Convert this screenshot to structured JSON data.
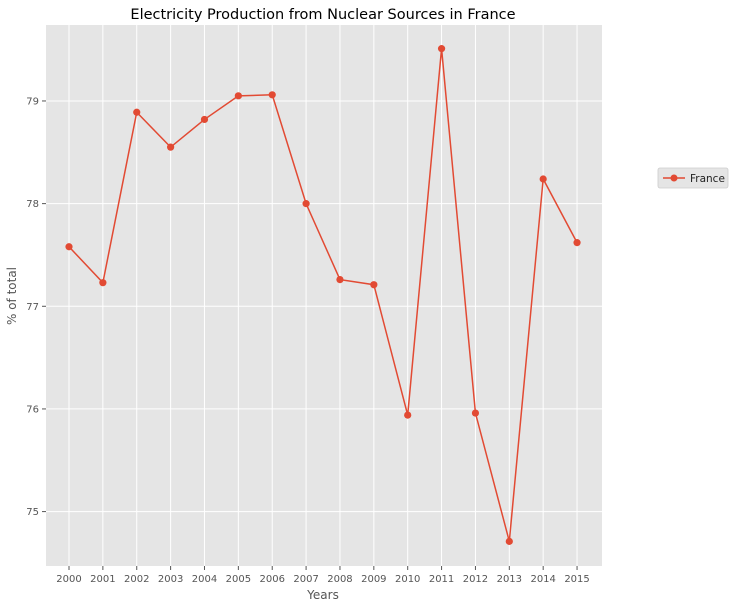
{
  "chart_data": {
    "type": "line",
    "title": "Electricity Production from Nuclear Sources in France",
    "xlabel": "Years",
    "ylabel": "% of total",
    "categories": [
      "2000",
      "2001",
      "2002",
      "2003",
      "2004",
      "2005",
      "2006",
      "2007",
      "2008",
      "2009",
      "2010",
      "2011",
      "2012",
      "2013",
      "2014",
      "2015"
    ],
    "series": [
      {
        "name": "France",
        "color": "#E24A33",
        "marker": "circle",
        "values": [
          77.58,
          77.23,
          78.89,
          78.55,
          78.82,
          79.05,
          79.06,
          78.0,
          77.26,
          77.21,
          75.94,
          79.51,
          75.96,
          74.71,
          78.24,
          77.62
        ]
      }
    ],
    "yticks": [
      75,
      76,
      77,
      78,
      79
    ],
    "ylim": [
      74.47,
      79.74
    ],
    "grid": true,
    "background": "#E5E5E5",
    "legend": {
      "position": "right",
      "entries": [
        "France"
      ]
    }
  }
}
